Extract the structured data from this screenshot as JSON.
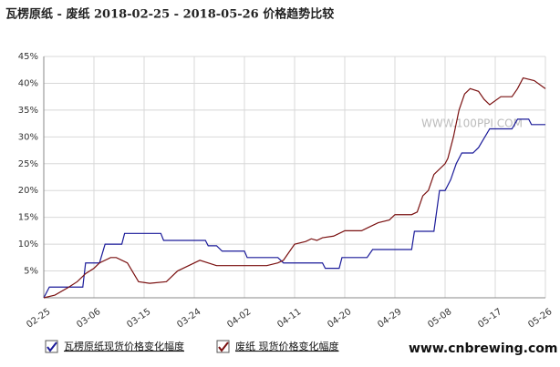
{
  "chart_data": {
    "type": "line",
    "title": "瓦楞原纸 - 废纸 2018-02-25 - 2018-05-26 价格趋势比较",
    "watermark": "WWW.100PPI.COM",
    "footer_text": "www.cnbrewing.com",
    "xlim": [
      0,
      90
    ],
    "xticks": [
      {
        "value": 0,
        "label": "02-25"
      },
      {
        "value": 9,
        "label": "03-06"
      },
      {
        "value": 18,
        "label": "03-15"
      },
      {
        "value": 27,
        "label": "03-24"
      },
      {
        "value": 36,
        "label": "04-02"
      },
      {
        "value": 45,
        "label": "04-11"
      },
      {
        "value": 54,
        "label": "04-20"
      },
      {
        "value": 63,
        "label": "04-29"
      },
      {
        "value": 72,
        "label": "05-08"
      },
      {
        "value": 81,
        "label": "05-17"
      },
      {
        "value": 90,
        "label": "05-26"
      }
    ],
    "ylim": [
      0,
      45
    ],
    "yticks": [
      {
        "value": 5,
        "label": "5%"
      },
      {
        "value": 10,
        "label": "10%"
      },
      {
        "value": 15,
        "label": "15%"
      },
      {
        "value": 20,
        "label": "20%"
      },
      {
        "value": 25,
        "label": "25%"
      },
      {
        "value": 30,
        "label": "30%"
      },
      {
        "value": 35,
        "label": "35%"
      },
      {
        "value": 40,
        "label": "40%"
      },
      {
        "value": 45,
        "label": "45%"
      }
    ],
    "grid": true,
    "series": [
      {
        "name": "瓦楞原纸现货价格变化幅度",
        "color": "#1a1a99",
        "x": [
          0,
          1,
          7,
          7.5,
          10,
          11,
          14,
          14.5,
          21,
          21.5,
          29,
          29.5,
          31,
          32,
          36,
          36.5,
          42,
          43,
          50,
          50.5,
          53,
          53.5,
          58,
          59,
          66,
          66.5,
          70,
          71,
          72,
          73,
          74,
          75,
          77,
          78,
          80,
          84,
          85,
          87,
          87.5,
          90
        ],
        "values": [
          0,
          2,
          2,
          6.5,
          6.5,
          10,
          10,
          12,
          12,
          10.7,
          10.7,
          9.7,
          9.7,
          8.7,
          8.7,
          7.5,
          7.5,
          6.5,
          6.5,
          5.5,
          5.5,
          7.5,
          7.5,
          9,
          9,
          12.4,
          12.4,
          20,
          20,
          22,
          25,
          27,
          27,
          28,
          31.5,
          31.5,
          33.3,
          33.3,
          32.3,
          32.3
        ]
      },
      {
        "name": "废纸 现货价格变化幅度",
        "color": "#7a1010",
        "x": [
          0,
          2,
          4.5,
          6,
          7.5,
          9,
          10,
          12,
          13,
          15,
          17,
          19,
          22,
          24,
          26,
          28,
          31,
          40,
          42,
          43,
          45,
          47,
          48,
          49,
          50,
          52,
          54,
          57,
          58,
          60,
          62,
          63,
          66,
          67,
          68,
          69,
          70,
          72,
          72.5,
          73.5,
          74.5,
          75.5,
          76.5,
          78,
          79,
          80,
          82,
          84,
          85,
          86,
          88,
          90
        ],
        "values": [
          0,
          0.5,
          2,
          3,
          4.5,
          5.5,
          6.5,
          7.5,
          7.5,
          6.5,
          3,
          2.7,
          3,
          5,
          6,
          7,
          6,
          6,
          6.5,
          7,
          10,
          10.5,
          11,
          10.7,
          11.2,
          11.5,
          12.5,
          12.5,
          13,
          14,
          14.5,
          15.5,
          15.5,
          16,
          19,
          20,
          23,
          25,
          26,
          30,
          35,
          38,
          39,
          38.5,
          37,
          36,
          37.5,
          37.5,
          39,
          41,
          40.5,
          39
        ]
      }
    ]
  }
}
